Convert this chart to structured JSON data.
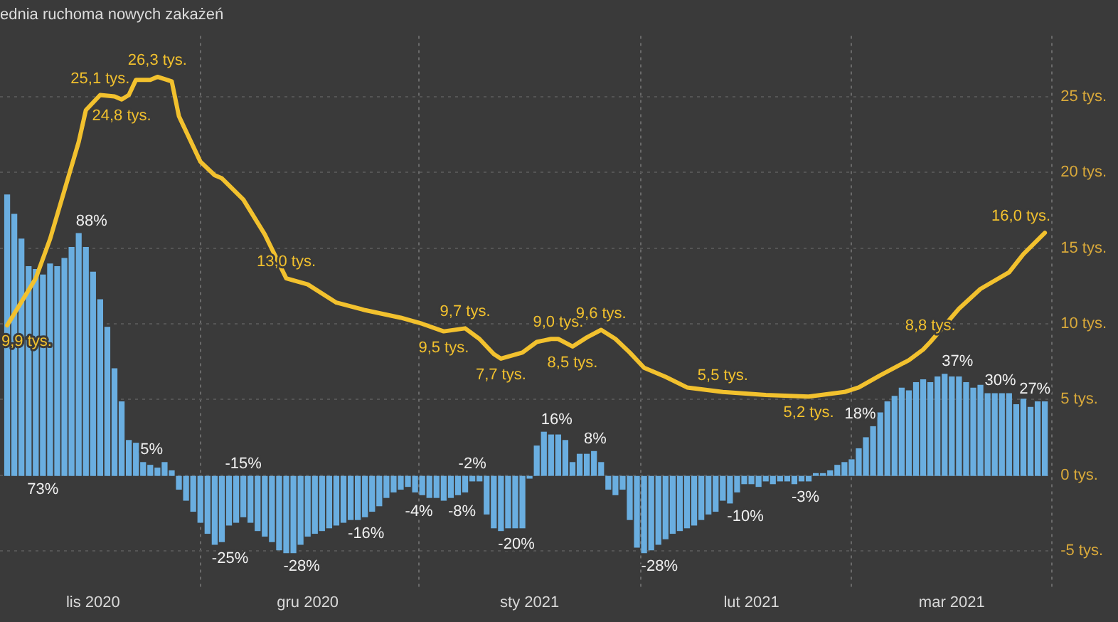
{
  "chart_data": {
    "type": "bar",
    "title": "ednia ruchoma nowych zakażeń",
    "xlim": [
      "2020-10-19",
      "2021-03-15"
    ],
    "xticks": [
      {
        "value": "2020-11-01",
        "label": "lis 2020"
      },
      {
        "value": "2020-12-01",
        "label": "gru 2020"
      },
      {
        "value": "2021-01-01",
        "label": "sty 2021"
      },
      {
        "value": "2021-02-01",
        "label": "lut 2021"
      },
      {
        "value": "2021-03-01",
        "label": "mar 2021"
      }
    ],
    "ylim": [
      -7.5,
      29
    ],
    "yticks": [
      {
        "value": -5,
        "label": "-5 tys."
      },
      {
        "value": 0,
        "label": "0 tys."
      },
      {
        "value": 5,
        "label": "5 tys."
      },
      {
        "value": 10,
        "label": "10 tys."
      },
      {
        "value": 15,
        "label": "15 tys."
      },
      {
        "value": 20,
        "label": "20 tys."
      },
      {
        "value": 25,
        "label": "25 tys."
      }
    ],
    "y2lim": [
      -41,
      159.5
    ],
    "grid": true,
    "legend": false,
    "marker": "none",
    "series": [
      {
        "axis": "y2",
        "color": "#6aaee0",
        "x": [
          "2020-10-20",
          "2020-10-21",
          "2020-10-22",
          "2020-10-23",
          "2020-10-24",
          "2020-10-25",
          "2020-10-26",
          "2020-10-27",
          "2020-10-28",
          "2020-10-29",
          "2020-10-30",
          "2020-10-31",
          "2020-11-01",
          "2020-11-02",
          "2020-11-03",
          "2020-11-04",
          "2020-11-05",
          "2020-11-06",
          "2020-11-07",
          "2020-11-08",
          "2020-11-09",
          "2020-11-10",
          "2020-11-11",
          "2020-11-12",
          "2020-11-13",
          "2020-11-14",
          "2020-11-15",
          "2020-11-16",
          "2020-11-17",
          "2020-11-18",
          "2020-11-19",
          "2020-11-20",
          "2020-11-21",
          "2020-11-22",
          "2020-11-23",
          "2020-11-24",
          "2020-11-25",
          "2020-11-26",
          "2020-11-27",
          "2020-11-28",
          "2020-11-29",
          "2020-11-30",
          "2020-12-01",
          "2020-12-02",
          "2020-12-03",
          "2020-12-04",
          "2020-12-05",
          "2020-12-06",
          "2020-12-07",
          "2020-12-08",
          "2020-12-09",
          "2020-12-10",
          "2020-12-11",
          "2020-12-12",
          "2020-12-13",
          "2020-12-14",
          "2020-12-15",
          "2020-12-16",
          "2020-12-17",
          "2020-12-18",
          "2020-12-19",
          "2020-12-20",
          "2020-12-21",
          "2020-12-22",
          "2020-12-23",
          "2020-12-24",
          "2020-12-25",
          "2020-12-26",
          "2020-12-27",
          "2020-12-28",
          "2020-12-29",
          "2020-12-30",
          "2020-12-31",
          "2021-01-01",
          "2021-01-02",
          "2021-01-03",
          "2021-01-04",
          "2021-01-05",
          "2021-01-06",
          "2021-01-07",
          "2021-01-08",
          "2021-01-09",
          "2021-01-10",
          "2021-01-11",
          "2021-01-12",
          "2021-01-13",
          "2021-01-14",
          "2021-01-15",
          "2021-01-16",
          "2021-01-17",
          "2021-01-18",
          "2021-01-19",
          "2021-01-20",
          "2021-01-21",
          "2021-01-22",
          "2021-01-23",
          "2021-01-24",
          "2021-01-25",
          "2021-01-26",
          "2021-01-27",
          "2021-01-28",
          "2021-01-29",
          "2021-01-30",
          "2021-01-31",
          "2021-02-01",
          "2021-02-02",
          "2021-02-03",
          "2021-02-04",
          "2021-02-05",
          "2021-02-06",
          "2021-02-07",
          "2021-02-08",
          "2021-02-09",
          "2021-02-10",
          "2021-02-11",
          "2021-02-12",
          "2021-02-13",
          "2021-02-14",
          "2021-02-15",
          "2021-02-16",
          "2021-02-17",
          "2021-02-18",
          "2021-02-19",
          "2021-02-20",
          "2021-02-21",
          "2021-02-22",
          "2021-02-23",
          "2021-02-24",
          "2021-02-25",
          "2021-02-26",
          "2021-02-27",
          "2021-02-28",
          "2021-03-01",
          "2021-03-02",
          "2021-03-03",
          "2021-03-04",
          "2021-03-05",
          "2021-03-06",
          "2021-03-07",
          "2021-03-08",
          "2021-03-09",
          "2021-03-10",
          "2021-03-11",
          "2021-03-12",
          "2021-03-13",
          "2021-03-14"
        ],
        "values": [
          102,
          95,
          86,
          76,
          75,
          73,
          77,
          76,
          79,
          83,
          88,
          83,
          74,
          64,
          54,
          39,
          27,
          13,
          12,
          5,
          4,
          3,
          5,
          2,
          -5,
          -9,
          -13,
          -17,
          -21,
          -25,
          -24,
          -18,
          -17,
          -15,
          -17,
          -20,
          -22,
          -24,
          -27,
          -28,
          -28,
          -25,
          -22,
          -21,
          -20,
          -19,
          -18,
          -17,
          -16,
          -16,
          -15,
          -13,
          -11,
          -8,
          -6,
          -5,
          -4,
          -6,
          -7,
          -8,
          -8,
          -9,
          -8,
          -7,
          -6,
          -2,
          -2,
          -14,
          -19,
          -20,
          -19,
          -19,
          -19,
          -1,
          11,
          16,
          15,
          15,
          13,
          5,
          8,
          8,
          9,
          5,
          -5,
          -7,
          -5,
          -16,
          -26,
          -28,
          -27,
          -25,
          -23,
          -21,
          -20,
          -19,
          -18,
          -16,
          -14,
          -13,
          -9,
          -10,
          -6,
          -3,
          -3,
          -4,
          -2,
          -3,
          -2,
          -2,
          -3,
          -2,
          -2,
          1,
          1,
          2,
          4,
          5,
          6,
          10,
          14,
          18,
          23,
          27,
          29,
          32,
          31,
          34,
          35,
          34,
          36,
          37,
          36,
          36,
          34,
          32,
          33,
          30,
          30,
          30,
          30,
          26,
          28,
          25,
          27,
          27
        ],
        "value_labels": [
          null,
          null,
          null,
          null,
          null,
          "73%",
          null,
          null,
          null,
          null,
          "88%",
          null,
          null,
          null,
          null,
          null,
          null,
          null,
          null,
          "5%",
          null,
          null,
          null,
          null,
          null,
          null,
          null,
          null,
          null,
          "-25%",
          null,
          null,
          null,
          "-15%",
          null,
          null,
          null,
          null,
          null,
          "-28%",
          null,
          null,
          null,
          null,
          null,
          null,
          null,
          null,
          "-16%",
          null,
          null,
          null,
          null,
          null,
          null,
          null,
          "-4%",
          null,
          null,
          null,
          null,
          null,
          "-8%",
          null,
          null,
          "-2%",
          null,
          null,
          null,
          "-20%",
          null,
          null,
          null,
          null,
          null,
          "16%",
          null,
          null,
          null,
          null,
          null,
          "8%",
          null,
          null,
          null,
          null,
          null,
          null,
          null,
          "-28%",
          null,
          null,
          null,
          null,
          null,
          null,
          null,
          null,
          null,
          null,
          null,
          "-10%",
          null,
          null,
          null,
          null,
          null,
          null,
          null,
          null,
          "-3%",
          null,
          null,
          null,
          null,
          null,
          null,
          null,
          null,
          null,
          null,
          "18%",
          null,
          null,
          null,
          null,
          null,
          null,
          null,
          null,
          null,
          "37%",
          null,
          null,
          null,
          null,
          null,
          "30%",
          null,
          null,
          null,
          null,
          null,
          null,
          "27%",
          null
        ]
      },
      {
        "type": "line",
        "color": "#f2c12e",
        "x": [
          "2020-10-20",
          "2020-10-24",
          "2020-10-26",
          "2020-10-28",
          "2020-10-30",
          "2020-10-31",
          "2020-11-02",
          "2020-11-04",
          "2020-11-05",
          "2020-11-06",
          "2020-11-07",
          "2020-11-09",
          "2020-11-10",
          "2020-11-12",
          "2020-11-13",
          "2020-11-16",
          "2020-11-18",
          "2020-11-19",
          "2020-11-22",
          "2020-11-25",
          "2020-11-28",
          "2020-12-01",
          "2020-12-05",
          "2020-12-09",
          "2020-12-14",
          "2020-12-17",
          "2020-12-20",
          "2020-12-23",
          "2020-12-25",
          "2020-12-27",
          "2020-12-28",
          "2020-12-31",
          "2021-01-02",
          "2021-01-04",
          "2021-01-05",
          "2021-01-07",
          "2021-01-09",
          "2021-01-11",
          "2021-01-13",
          "2021-01-15",
          "2021-01-17",
          "2021-01-20",
          "2021-01-23",
          "2021-01-28",
          "2021-02-03",
          "2021-02-09",
          "2021-02-14",
          "2021-02-16",
          "2021-02-19",
          "2021-02-23",
          "2021-02-25",
          "2021-02-26",
          "2021-03-02",
          "2021-03-05",
          "2021-03-09",
          "2021-03-11",
          "2021-03-14"
        ],
        "values": [
          9.9,
          13,
          15.6,
          18.8,
          22,
          24.1,
          25.1,
          25.0,
          24.8,
          25.1,
          26.1,
          26.1,
          26.3,
          26,
          23.7,
          20.7,
          19.8,
          19.6,
          18.2,
          15.9,
          13.0,
          12.6,
          11.4,
          10.9,
          10.4,
          10.0,
          9.5,
          9.7,
          9.0,
          8.0,
          7.7,
          8.1,
          8.8,
          9.0,
          9.0,
          8.5,
          9.1,
          9.6,
          9.0,
          8.1,
          7.1,
          6.5,
          5.8,
          5.5,
          5.3,
          5.2,
          5.5,
          5.8,
          6.6,
          7.6,
          8.3,
          8.8,
          11,
          12.3,
          13.4,
          14.6,
          16.0
        ],
        "value_labels": [
          "9,9 tys.",
          null,
          null,
          null,
          null,
          null,
          "25,1 tys.",
          null,
          "24,8 tys.",
          null,
          null,
          null,
          "26,3 tys.",
          null,
          null,
          null,
          null,
          null,
          null,
          null,
          "13,0 tys.",
          null,
          null,
          null,
          null,
          null,
          "9,5 tys.",
          "9,7 tys.",
          null,
          null,
          "7,7 tys.",
          null,
          null,
          null,
          "9,0 tys.",
          "8,5 tys.",
          null,
          "9,6 tys.",
          null,
          null,
          null,
          null,
          null,
          "5,5 tys.",
          null,
          "5,2 tys.",
          null,
          null,
          null,
          null,
          null,
          "8,8 tys.",
          null,
          null,
          null,
          null,
          "16,0 tys."
        ]
      }
    ]
  }
}
